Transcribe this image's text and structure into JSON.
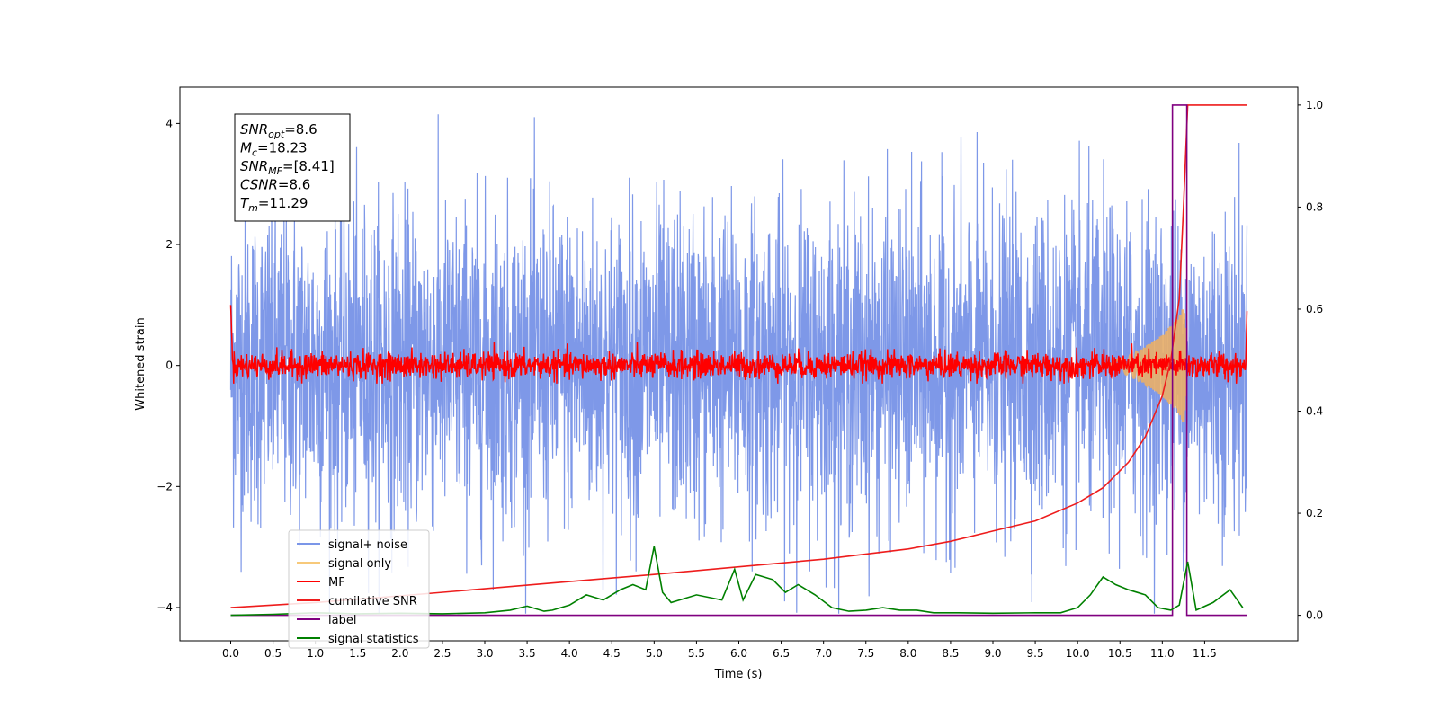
{
  "chart_data": {
    "type": "line",
    "xlabel": "Time (s)",
    "ylabel": "Whitened strain",
    "xlim": [
      -0.6,
      12.6
    ],
    "ylim": [
      -4.55,
      4.6
    ],
    "y2lim": [
      -0.05,
      1.035
    ],
    "x_ticks": [
      "0.0",
      "0.5",
      "1.0",
      "1.5",
      "2.0",
      "2.5",
      "3.0",
      "3.5",
      "4.0",
      "4.5",
      "5.0",
      "5.5",
      "6.0",
      "6.5",
      "7.0",
      "7.5",
      "8.0",
      "8.5",
      "9.0",
      "9.5",
      "10.0",
      "10.5",
      "11.0",
      "11.5"
    ],
    "y_ticks": [
      "4",
      "2",
      "0",
      "−2",
      "−4"
    ],
    "y_tick_values": [
      4,
      2,
      0,
      -2,
      -4
    ],
    "y2_ticks": [
      "1.0",
      "0.8",
      "0.6",
      "0.4",
      "0.2",
      "0.0"
    ],
    "y2_tick_values": [
      1.0,
      0.8,
      0.6,
      0.4,
      0.2,
      0.0
    ],
    "annotation": [
      {
        "main": "SNR",
        "sub": "opt",
        "rest": "=8.6"
      },
      {
        "main": "M",
        "sub": "c",
        "rest": "=18.23"
      },
      {
        "main": "SNR",
        "sub": "MF",
        "rest": "=[8.41]"
      },
      {
        "main": "CSNR",
        "sub": "",
        "rest": "=8.6"
      },
      {
        "main": "T",
        "sub": "m",
        "rest": "=11.29"
      }
    ],
    "legend_position": "lower-left",
    "legend": [
      {
        "label": "signal+ noise",
        "color": "#7b96e8"
      },
      {
        "label": "signal only",
        "color": "#f7c97a"
      },
      {
        "label": "MF",
        "color": "#ff0000"
      },
      {
        "label": "cumilative SNR",
        "color": "#ee1c1c"
      },
      {
        "label": "label",
        "color": "#800080"
      },
      {
        "label": "signal statistics",
        "color": "#008000"
      }
    ],
    "series": [
      {
        "name": "signal+ noise",
        "axis": "left",
        "color": "#7b96e8",
        "x_range": [
          0.0,
          12.0
        ],
        "description": "dense noisy strain, roughly within ±4"
      },
      {
        "name": "signal only",
        "axis": "left",
        "color": "#f0b060",
        "x": [
          10.3,
          10.6,
          10.8,
          11.0,
          11.1,
          11.2,
          11.25,
          11.29
        ],
        "amplitude": [
          0.05,
          0.15,
          0.3,
          0.5,
          0.65,
          0.8,
          0.95,
          0.0
        ]
      },
      {
        "name": "MF",
        "axis": "left",
        "color": "#ff0000",
        "x_range": [
          0.0,
          12.0
        ],
        "description": "noisy trace near 0, amplitude ~0.15, start 1.0 end 0.9"
      },
      {
        "name": "cumilative SNR",
        "axis": "right",
        "color": "#ee1c1c",
        "x": [
          0.0,
          1.0,
          2.0,
          3.0,
          4.0,
          5.0,
          6.0,
          7.0,
          8.0,
          8.5,
          9.0,
          9.5,
          10.0,
          10.3,
          10.6,
          10.8,
          11.0,
          11.1,
          11.2,
          11.25,
          11.3,
          11.5,
          12.0
        ],
        "y": [
          0.015,
          0.025,
          0.038,
          0.052,
          0.066,
          0.08,
          0.095,
          0.11,
          0.13,
          0.145,
          0.165,
          0.185,
          0.22,
          0.25,
          0.3,
          0.35,
          0.43,
          0.5,
          0.62,
          0.8,
          1.0,
          1.0,
          1.0
        ]
      },
      {
        "name": "label",
        "axis": "right",
        "color": "#800080",
        "x": [
          0.0,
          11.12,
          11.12,
          11.29,
          11.29,
          12.0
        ],
        "y": [
          0.0,
          0.0,
          1.0,
          1.0,
          0.0,
          0.0
        ]
      },
      {
        "name": "signal statistics",
        "axis": "right",
        "color": "#008000",
        "x": [
          0.0,
          0.5,
          1.0,
          1.5,
          2.0,
          2.5,
          3.0,
          3.3,
          3.5,
          3.7,
          3.8,
          4.0,
          4.2,
          4.4,
          4.6,
          4.75,
          4.9,
          5.0,
          5.1,
          5.2,
          5.3,
          5.5,
          5.8,
          5.95,
          6.05,
          6.2,
          6.4,
          6.55,
          6.7,
          6.9,
          7.1,
          7.3,
          7.5,
          7.7,
          7.9,
          8.1,
          8.3,
          8.6,
          9.0,
          9.5,
          9.8,
          10.0,
          10.15,
          10.3,
          10.45,
          10.6,
          10.8,
          10.95,
          11.1,
          11.2,
          11.3,
          11.4,
          11.6,
          11.8,
          11.95
        ],
        "y": [
          0.0,
          0.002,
          0.005,
          0.003,
          0.004,
          0.003,
          0.005,
          0.01,
          0.018,
          0.008,
          0.01,
          0.02,
          0.04,
          0.03,
          0.05,
          0.06,
          0.05,
          0.135,
          0.045,
          0.025,
          0.03,
          0.04,
          0.03,
          0.09,
          0.03,
          0.08,
          0.07,
          0.045,
          0.06,
          0.04,
          0.015,
          0.008,
          0.01,
          0.015,
          0.01,
          0.01,
          0.005,
          0.005,
          0.004,
          0.005,
          0.005,
          0.015,
          0.04,
          0.075,
          0.06,
          0.05,
          0.04,
          0.015,
          0.01,
          0.02,
          0.105,
          0.01,
          0.025,
          0.05,
          0.015
        ]
      }
    ]
  }
}
